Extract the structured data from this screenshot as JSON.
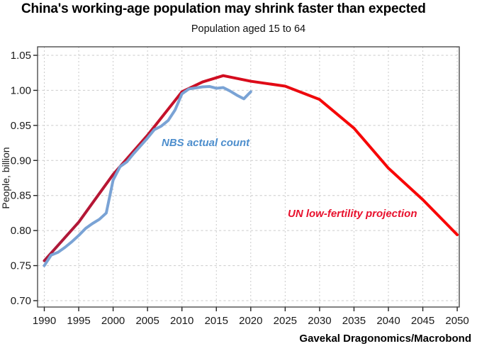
{
  "chart_data": {
    "type": "line",
    "title": "China's working-age population may shrink faster than expected",
    "subtitle": "Population aged 15 to 64",
    "source": "Gavekal Dragonomics/Macrobond",
    "ylabel": "People, billion",
    "xlabel": "",
    "ylim": [
      0.7,
      1.05
    ],
    "xlim": [
      1989,
      2051
    ],
    "y_ticks": [
      0.7,
      0.75,
      0.8,
      0.85,
      0.9,
      0.95,
      1.0,
      1.05
    ],
    "x_ticks": [
      1990,
      1995,
      2000,
      2005,
      2010,
      2015,
      2020,
      2025,
      2030,
      2035,
      2040,
      2045,
      2050
    ],
    "grid": "dashed, both axes",
    "legend": "inline text annotations near lines",
    "series": [
      {
        "name": "NBS actual count",
        "color": "#7aa3d5",
        "label_color": "#4d8ecd",
        "x": [
          1990,
          1991,
          1992,
          1993,
          1994,
          1995,
          1996,
          1997,
          1998,
          1999,
          2000,
          2001,
          2002,
          2003,
          2004,
          2005,
          2006,
          2007,
          2008,
          2009,
          2010,
          2011,
          2012,
          2013,
          2014,
          2015,
          2016,
          2017,
          2018,
          2019,
          2020
        ],
        "values": [
          0.75,
          0.765,
          0.769,
          0.776,
          0.784,
          0.793,
          0.803,
          0.81,
          0.816,
          0.825,
          0.872,
          0.891,
          0.898,
          0.91,
          0.921,
          0.932,
          0.944,
          0.949,
          0.957,
          0.972,
          0.995,
          1.002,
          1.0035,
          1.005,
          1.0055,
          1.003,
          1.004,
          0.999,
          0.993,
          0.988,
          0.998
        ]
      },
      {
        "name": "UN low-fertility projection",
        "color": "#d40f26",
        "color_gradient": [
          "#ab1a3c",
          "#cf0d22",
          "#f50808",
          "#fa0606"
        ],
        "label_color": "#e8112d",
        "x": [
          1990,
          1995,
          2000,
          2005,
          2010,
          2013,
          2016,
          2020,
          2025,
          2030,
          2035,
          2040,
          2045,
          2050
        ],
        "values": [
          0.757,
          0.812,
          0.88,
          0.936,
          0.998,
          1.012,
          1.021,
          1.013,
          1.006,
          0.987,
          0.946,
          0.889,
          0.844,
          0.794
        ]
      }
    ]
  }
}
